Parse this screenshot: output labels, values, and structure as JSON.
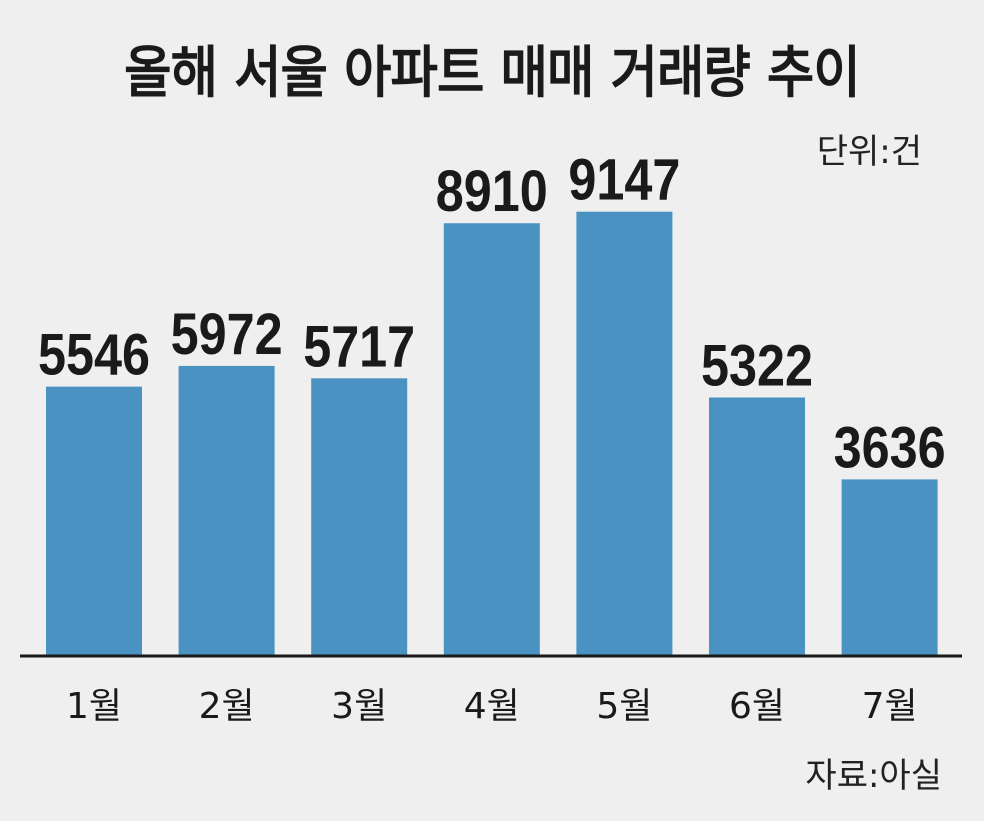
{
  "title": "올해 서울 아파트 매매 거래량 추이",
  "unit": "단위:건",
  "source": "자료:아실",
  "colors": {
    "bar": "#4a92c2",
    "axis": "#1a1a1a",
    "background": "#efefef"
  },
  "chart_data": {
    "type": "bar",
    "title": "올해 서울 아파트 매매 거래량 추이",
    "categories": [
      "1월",
      "2월",
      "3월",
      "4월",
      "5월",
      "6월",
      "7월"
    ],
    "values": [
      5546,
      5972,
      5717,
      8910,
      9147,
      5322,
      3636
    ],
    "ylim": [
      0,
      9800
    ],
    "grid": false,
    "legend": "none"
  }
}
